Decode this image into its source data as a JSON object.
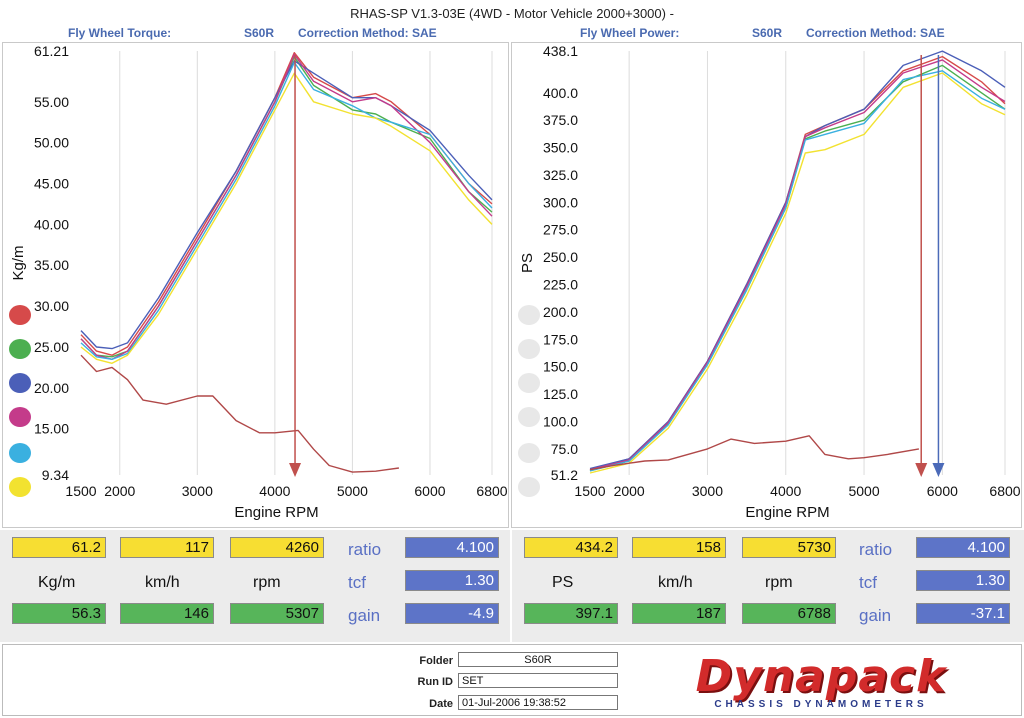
{
  "header": {
    "title": "RHAS-SP V1.3-03E  (4WD - Motor Vehicle 2000+3000) -",
    "left_label": "Fly Wheel Torque:",
    "left_vehicle": "S60R",
    "left_correction": "Correction Method: SAE",
    "right_label": "Fly Wheel Power:",
    "right_vehicle": "S60R",
    "right_correction": "Correction Method: SAE"
  },
  "chart_data": [
    {
      "type": "line",
      "name": "torque",
      "xlabel": "Engine RPM",
      "ylabel": "Kg/m",
      "xlim": [
        1500,
        6800
      ],
      "ylim": [
        9.34,
        61.21
      ],
      "xticks": [
        2000,
        3000,
        4000,
        5000,
        6000,
        6800
      ],
      "xtick_labels": [
        "1500",
        "2000",
        "3000",
        "4000",
        "5000",
        "6000",
        "6800"
      ],
      "yticks": [
        61.21,
        55.0,
        50.0,
        45.0,
        40.0,
        35.0,
        30.0,
        25.0,
        20.0,
        15.0,
        9.34
      ],
      "ytick_labels": [
        "61.21",
        "55.00",
        "50.00",
        "45.00",
        "40.00",
        "35.00",
        "30.00",
        "25.00",
        "20.00",
        "15.00",
        "9.34"
      ],
      "marker_rpm": 4260,
      "marker_color": "#c0504d",
      "series": [
        {
          "color": "#d64a4a",
          "x": [
            1500,
            1700,
            1900,
            2100,
            2500,
            3000,
            3500,
            4000,
            4250,
            4500,
            5000,
            5300,
            5500,
            6000,
            6500,
            6800
          ],
          "y": [
            26.5,
            24.5,
            24.0,
            25.0,
            30.5,
            38.5,
            46.5,
            55.5,
            61.0,
            58.0,
            55.5,
            56.0,
            55.0,
            51.0,
            45.0,
            42.5
          ]
        },
        {
          "color": "#4caf50",
          "x": [
            1500,
            1700,
            1900,
            2100,
            2500,
            3000,
            3500,
            4000,
            4250,
            4500,
            5000,
            5300,
            5500,
            6000,
            6500,
            6800
          ],
          "y": [
            26.0,
            24.0,
            23.8,
            24.5,
            30.0,
            38.0,
            46.0,
            55.0,
            60.5,
            57.0,
            54.0,
            53.5,
            52.5,
            50.5,
            44.0,
            41.5
          ]
        },
        {
          "color": "#4b5fb8",
          "x": [
            1500,
            1700,
            1900,
            2100,
            2500,
            3000,
            3500,
            4000,
            4250,
            4500,
            5000,
            5300,
            5500,
            6000,
            6500,
            6800
          ],
          "y": [
            27.0,
            25.0,
            24.8,
            25.5,
            31.0,
            39.0,
            46.5,
            55.5,
            60.0,
            58.5,
            55.5,
            55.5,
            54.5,
            51.5,
            46.0,
            43.0
          ]
        },
        {
          "color": "#c43b8a",
          "x": [
            1500,
            1700,
            1900,
            2100,
            2500,
            3000,
            3500,
            4000,
            4250,
            4500,
            5000,
            5300,
            5500,
            6000,
            6500,
            6800
          ],
          "y": [
            26.0,
            24.0,
            23.5,
            24.5,
            30.0,
            38.0,
            46.0,
            55.0,
            60.8,
            57.5,
            55.0,
            55.5,
            54.5,
            50.0,
            44.0,
            41.0
          ]
        },
        {
          "color": "#3ab0e0",
          "x": [
            1500,
            1700,
            1900,
            2100,
            2500,
            3000,
            3500,
            4000,
            4250,
            4500,
            5000,
            5300,
            5500,
            6000,
            6500,
            6800
          ],
          "y": [
            25.5,
            23.8,
            23.5,
            24.2,
            29.5,
            37.5,
            45.5,
            54.5,
            59.8,
            56.5,
            54.5,
            53.0,
            52.5,
            51.0,
            45.0,
            42.0
          ]
        },
        {
          "color": "#f2e230",
          "x": [
            1500,
            1700,
            1900,
            2100,
            2500,
            3000,
            3500,
            4000,
            4250,
            4500,
            5000,
            5300,
            5500,
            6000,
            6500,
            6800
          ],
          "y": [
            25.0,
            23.5,
            23.0,
            24.0,
            29.0,
            37.0,
            45.0,
            54.0,
            58.5,
            55.0,
            53.5,
            53.0,
            52.0,
            49.0,
            43.0,
            40.0
          ]
        },
        {
          "color": "#b04848",
          "x": [
            1500,
            1700,
            1900,
            2100,
            2300,
            2600,
            3000,
            3200,
            3500,
            3800,
            4000,
            4300,
            4500,
            4700,
            5000,
            5300,
            5600
          ],
          "y": [
            24.0,
            22.0,
            22.5,
            21.0,
            18.5,
            18.0,
            19.0,
            19.0,
            16.0,
            14.5,
            14.5,
            14.8,
            12.5,
            10.5,
            9.7,
            9.8,
            10.2
          ]
        }
      ]
    },
    {
      "type": "line",
      "name": "power",
      "xlabel": "Engine RPM",
      "ylabel": "PS",
      "xlim": [
        1500,
        6800
      ],
      "ylim": [
        51.2,
        438.1
      ],
      "xticks": [
        2000,
        3000,
        4000,
        5000,
        6000,
        6800
      ],
      "xtick_labels": [
        "1500",
        "2000",
        "3000",
        "4000",
        "5000",
        "6000",
        "6800"
      ],
      "yticks": [
        438.1,
        400.0,
        375.0,
        350.0,
        325.0,
        300.0,
        275.0,
        250.0,
        225.0,
        200.0,
        175.0,
        150.0,
        125.0,
        100.0,
        75.0,
        51.2
      ],
      "ytick_labels": [
        "438.1",
        "400.0",
        "375.0",
        "350.0",
        "325.0",
        "300.0",
        "275.0",
        "250.0",
        "225.0",
        "200.0",
        "175.0",
        "150.0",
        "125.0",
        "100.0",
        "75.0",
        "51.2"
      ],
      "marker_rpm": 5730,
      "marker_rpm_2": 5950,
      "marker_color": "#c0504d",
      "marker_color_2": "#4b6ab8",
      "series": [
        {
          "color": "#d64a4a",
          "x": [
            1500,
            2000,
            2500,
            3000,
            3500,
            4000,
            4250,
            4500,
            5000,
            5500,
            6000,
            6500,
            6800
          ],
          "y": [
            56,
            66,
            100,
            155,
            225,
            300,
            362,
            370,
            385,
            420,
            433,
            410,
            390
          ]
        },
        {
          "color": "#4caf50",
          "x": [
            1500,
            2000,
            2500,
            3000,
            3500,
            4000,
            4250,
            4500,
            5000,
            5500,
            6000,
            6500,
            6800
          ],
          "y": [
            55,
            64,
            98,
            152,
            220,
            295,
            358,
            365,
            375,
            410,
            425,
            400,
            385
          ]
        },
        {
          "color": "#4b5fb8",
          "x": [
            1500,
            2000,
            2500,
            3000,
            3500,
            4000,
            4250,
            4500,
            5000,
            5500,
            6000,
            6500,
            6800
          ],
          "y": [
            57,
            66,
            100,
            155,
            225,
            300,
            360,
            370,
            385,
            425,
            438,
            420,
            405
          ]
        },
        {
          "color": "#c43b8a",
          "x": [
            1500,
            2000,
            2500,
            3000,
            3500,
            4000,
            4250,
            4500,
            5000,
            5500,
            6000,
            6500,
            6800
          ],
          "y": [
            56,
            65,
            99,
            154,
            223,
            298,
            360,
            368,
            382,
            418,
            430,
            405,
            392
          ]
        },
        {
          "color": "#3ab0e0",
          "x": [
            1500,
            2000,
            2500,
            3000,
            3500,
            4000,
            4250,
            4500,
            5000,
            5500,
            6000,
            6500,
            6800
          ],
          "y": [
            55,
            64,
            97,
            152,
            220,
            295,
            357,
            362,
            372,
            412,
            420,
            395,
            385
          ]
        },
        {
          "color": "#f2e230",
          "x": [
            1500,
            2000,
            2500,
            3000,
            3500,
            4000,
            4250,
            4500,
            5000,
            5500,
            6000,
            6500,
            6800
          ],
          "y": [
            53,
            62,
            94,
            148,
            215,
            290,
            345,
            348,
            362,
            405,
            418,
            390,
            380
          ]
        },
        {
          "color": "#b04848",
          "x": [
            1500,
            1800,
            2000,
            2200,
            2500,
            3000,
            3300,
            3600,
            4000,
            4300,
            4500,
            4800,
            5000,
            5300,
            5700
          ],
          "y": [
            56,
            60,
            62,
            64,
            65,
            75,
            84,
            80,
            82,
            87,
            70,
            66,
            67,
            70,
            75
          ]
        }
      ]
    }
  ],
  "legend_dots_left": [
    "#d64a4a",
    "#4caf50",
    "#4b5fb8",
    "#c43b8a",
    "#3ab0e0",
    "#f2e230"
  ],
  "legend_dots_right": [
    "#e8e8e8",
    "#e8e8e8",
    "#e8e8e8",
    "#e8e8e8",
    "#e8e8e8",
    "#e8e8e8"
  ],
  "stats_left": {
    "peak_torque": "61.2",
    "peak_speed": "117",
    "peak_rpm": "4260",
    "ratio_label": "ratio",
    "ratio_value": "4.100",
    "unit_torque": "Kg/m",
    "unit_speed": "km/h",
    "unit_rpm": "rpm",
    "tcf_label": "tcf",
    "tcf_value": "1.30",
    "cur_torque": "56.3",
    "cur_speed": "146",
    "cur_rpm": "5307",
    "gain_label": "gain",
    "gain_value": "-4.9"
  },
  "stats_right": {
    "peak_power": "434.2",
    "peak_speed": "158",
    "peak_rpm": "5730",
    "ratio_label": "ratio",
    "ratio_value": "4.100",
    "unit_power": "PS",
    "unit_speed": "km/h",
    "unit_rpm": "rpm",
    "tcf_label": "tcf",
    "tcf_value": "1.30",
    "cur_power": "397.1",
    "cur_speed": "187",
    "cur_rpm": "6788",
    "gain_label": "gain",
    "gain_value": "-37.1"
  },
  "footer": {
    "folder_label": "Folder",
    "folder_value": "S60R",
    "runid_label": "Run ID",
    "runid_value": "SET",
    "date_label": "Date",
    "date_value": "01-Jul-2006  19:38:52",
    "logo_text": "Dynapack",
    "logo_sub": "CHASSIS DYNAMOMETERS"
  }
}
